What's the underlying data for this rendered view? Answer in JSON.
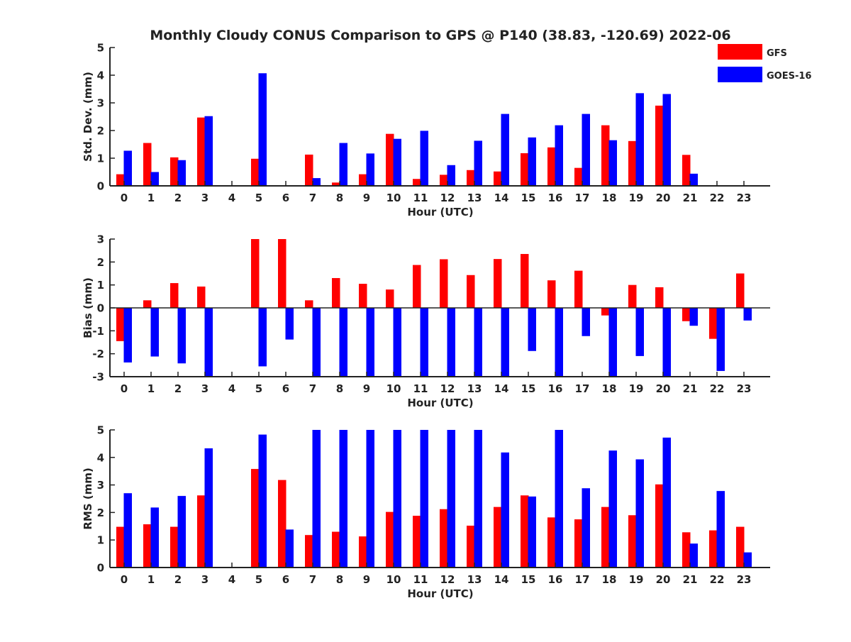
{
  "title": "Monthly Cloudy CONUS Comparison to GPS @ P140 (38.83, -120.69) 2022-06",
  "legend": {
    "gfs": "GFS",
    "goes": "GOES-16"
  },
  "colors": {
    "gfs": "#ff0000",
    "goes": "#0000ff",
    "axis": "#222222"
  },
  "chart_data": [
    {
      "type": "bar",
      "ylabel": "Std. Dev. (mm)",
      "xlabel": "Hour (UTC)",
      "ylim": [
        0,
        5
      ],
      "yticks": [
        0,
        1,
        2,
        3,
        4,
        5
      ],
      "categories": [
        "0",
        "1",
        "2",
        "3",
        "4",
        "5",
        "6",
        "7",
        "8",
        "9",
        "10",
        "11",
        "12",
        "13",
        "14",
        "15",
        "16",
        "17",
        "18",
        "19",
        "20",
        "21",
        "22",
        "23"
      ],
      "series": [
        {
          "name": "GFS",
          "values": [
            0.42,
            1.55,
            1.03,
            2.47,
            0,
            0.98,
            0,
            1.13,
            0.12,
            0.42,
            1.88,
            0.25,
            0.4,
            0.57,
            0.52,
            1.18,
            1.39,
            0.65,
            2.19,
            1.62,
            2.9,
            1.12,
            0,
            0
          ]
        },
        {
          "name": "GOES-16",
          "values": [
            1.27,
            0.5,
            0.93,
            2.52,
            0,
            4.07,
            0,
            0.28,
            1.55,
            1.17,
            1.7,
            1.99,
            0.75,
            1.63,
            2.6,
            1.75,
            2.19,
            2.6,
            1.65,
            3.35,
            3.32,
            0.44,
            0,
            0
          ]
        }
      ]
    },
    {
      "type": "bar",
      "ylabel": "Bias (mm)",
      "xlabel": "Hour (UTC)",
      "ylim": [
        -3,
        3
      ],
      "yticks": [
        -3,
        -2,
        -1,
        0,
        1,
        2,
        3
      ],
      "categories": [
        "0",
        "1",
        "2",
        "3",
        "4",
        "5",
        "6",
        "7",
        "8",
        "9",
        "10",
        "11",
        "12",
        "13",
        "14",
        "15",
        "16",
        "17",
        "18",
        "19",
        "20",
        "21",
        "22",
        "23"
      ],
      "series": [
        {
          "name": "GFS",
          "values": [
            -1.45,
            0.33,
            1.08,
            0.93,
            0,
            3.0,
            3.0,
            0.33,
            1.3,
            1.05,
            0.8,
            1.87,
            2.12,
            1.43,
            2.13,
            2.35,
            1.2,
            1.62,
            -0.33,
            1.0,
            0.9,
            -0.58,
            -1.35,
            1.5
          ]
        },
        {
          "name": "GOES-16",
          "values": [
            -2.38,
            -2.12,
            -2.42,
            -3.0,
            0,
            -2.55,
            -1.38,
            -3.0,
            -3.0,
            -3.0,
            -3.0,
            -3.0,
            -3.0,
            -3.0,
            -3.0,
            -1.88,
            -3.0,
            -1.23,
            -3.0,
            -2.1,
            -3.0,
            -0.78,
            -2.75,
            -0.55
          ]
        }
      ]
    },
    {
      "type": "bar",
      "ylabel": "RMS (mm)",
      "xlabel": "Hour (UTC)",
      "ylim": [
        0,
        5
      ],
      "yticks": [
        0,
        1,
        2,
        3,
        4,
        5
      ],
      "categories": [
        "0",
        "1",
        "2",
        "3",
        "4",
        "5",
        "6",
        "7",
        "8",
        "9",
        "10",
        "11",
        "12",
        "13",
        "14",
        "15",
        "16",
        "17",
        "18",
        "19",
        "20",
        "21",
        "22",
        "23"
      ],
      "series": [
        {
          "name": "GFS",
          "values": [
            1.48,
            1.57,
            1.48,
            2.62,
            0,
            3.58,
            3.18,
            1.18,
            1.3,
            1.13,
            2.02,
            1.88,
            2.12,
            1.52,
            2.2,
            2.62,
            1.82,
            1.75,
            2.2,
            1.9,
            3.02,
            1.28,
            1.35,
            1.48
          ]
        },
        {
          "name": "GOES-16",
          "values": [
            2.7,
            2.18,
            2.6,
            4.33,
            0,
            4.83,
            1.38,
            5.0,
            5.0,
            5.0,
            5.0,
            5.0,
            5.0,
            5.0,
            4.18,
            2.58,
            5.0,
            2.88,
            4.25,
            3.93,
            4.72,
            0.87,
            2.78,
            0.55
          ]
        }
      ]
    }
  ]
}
